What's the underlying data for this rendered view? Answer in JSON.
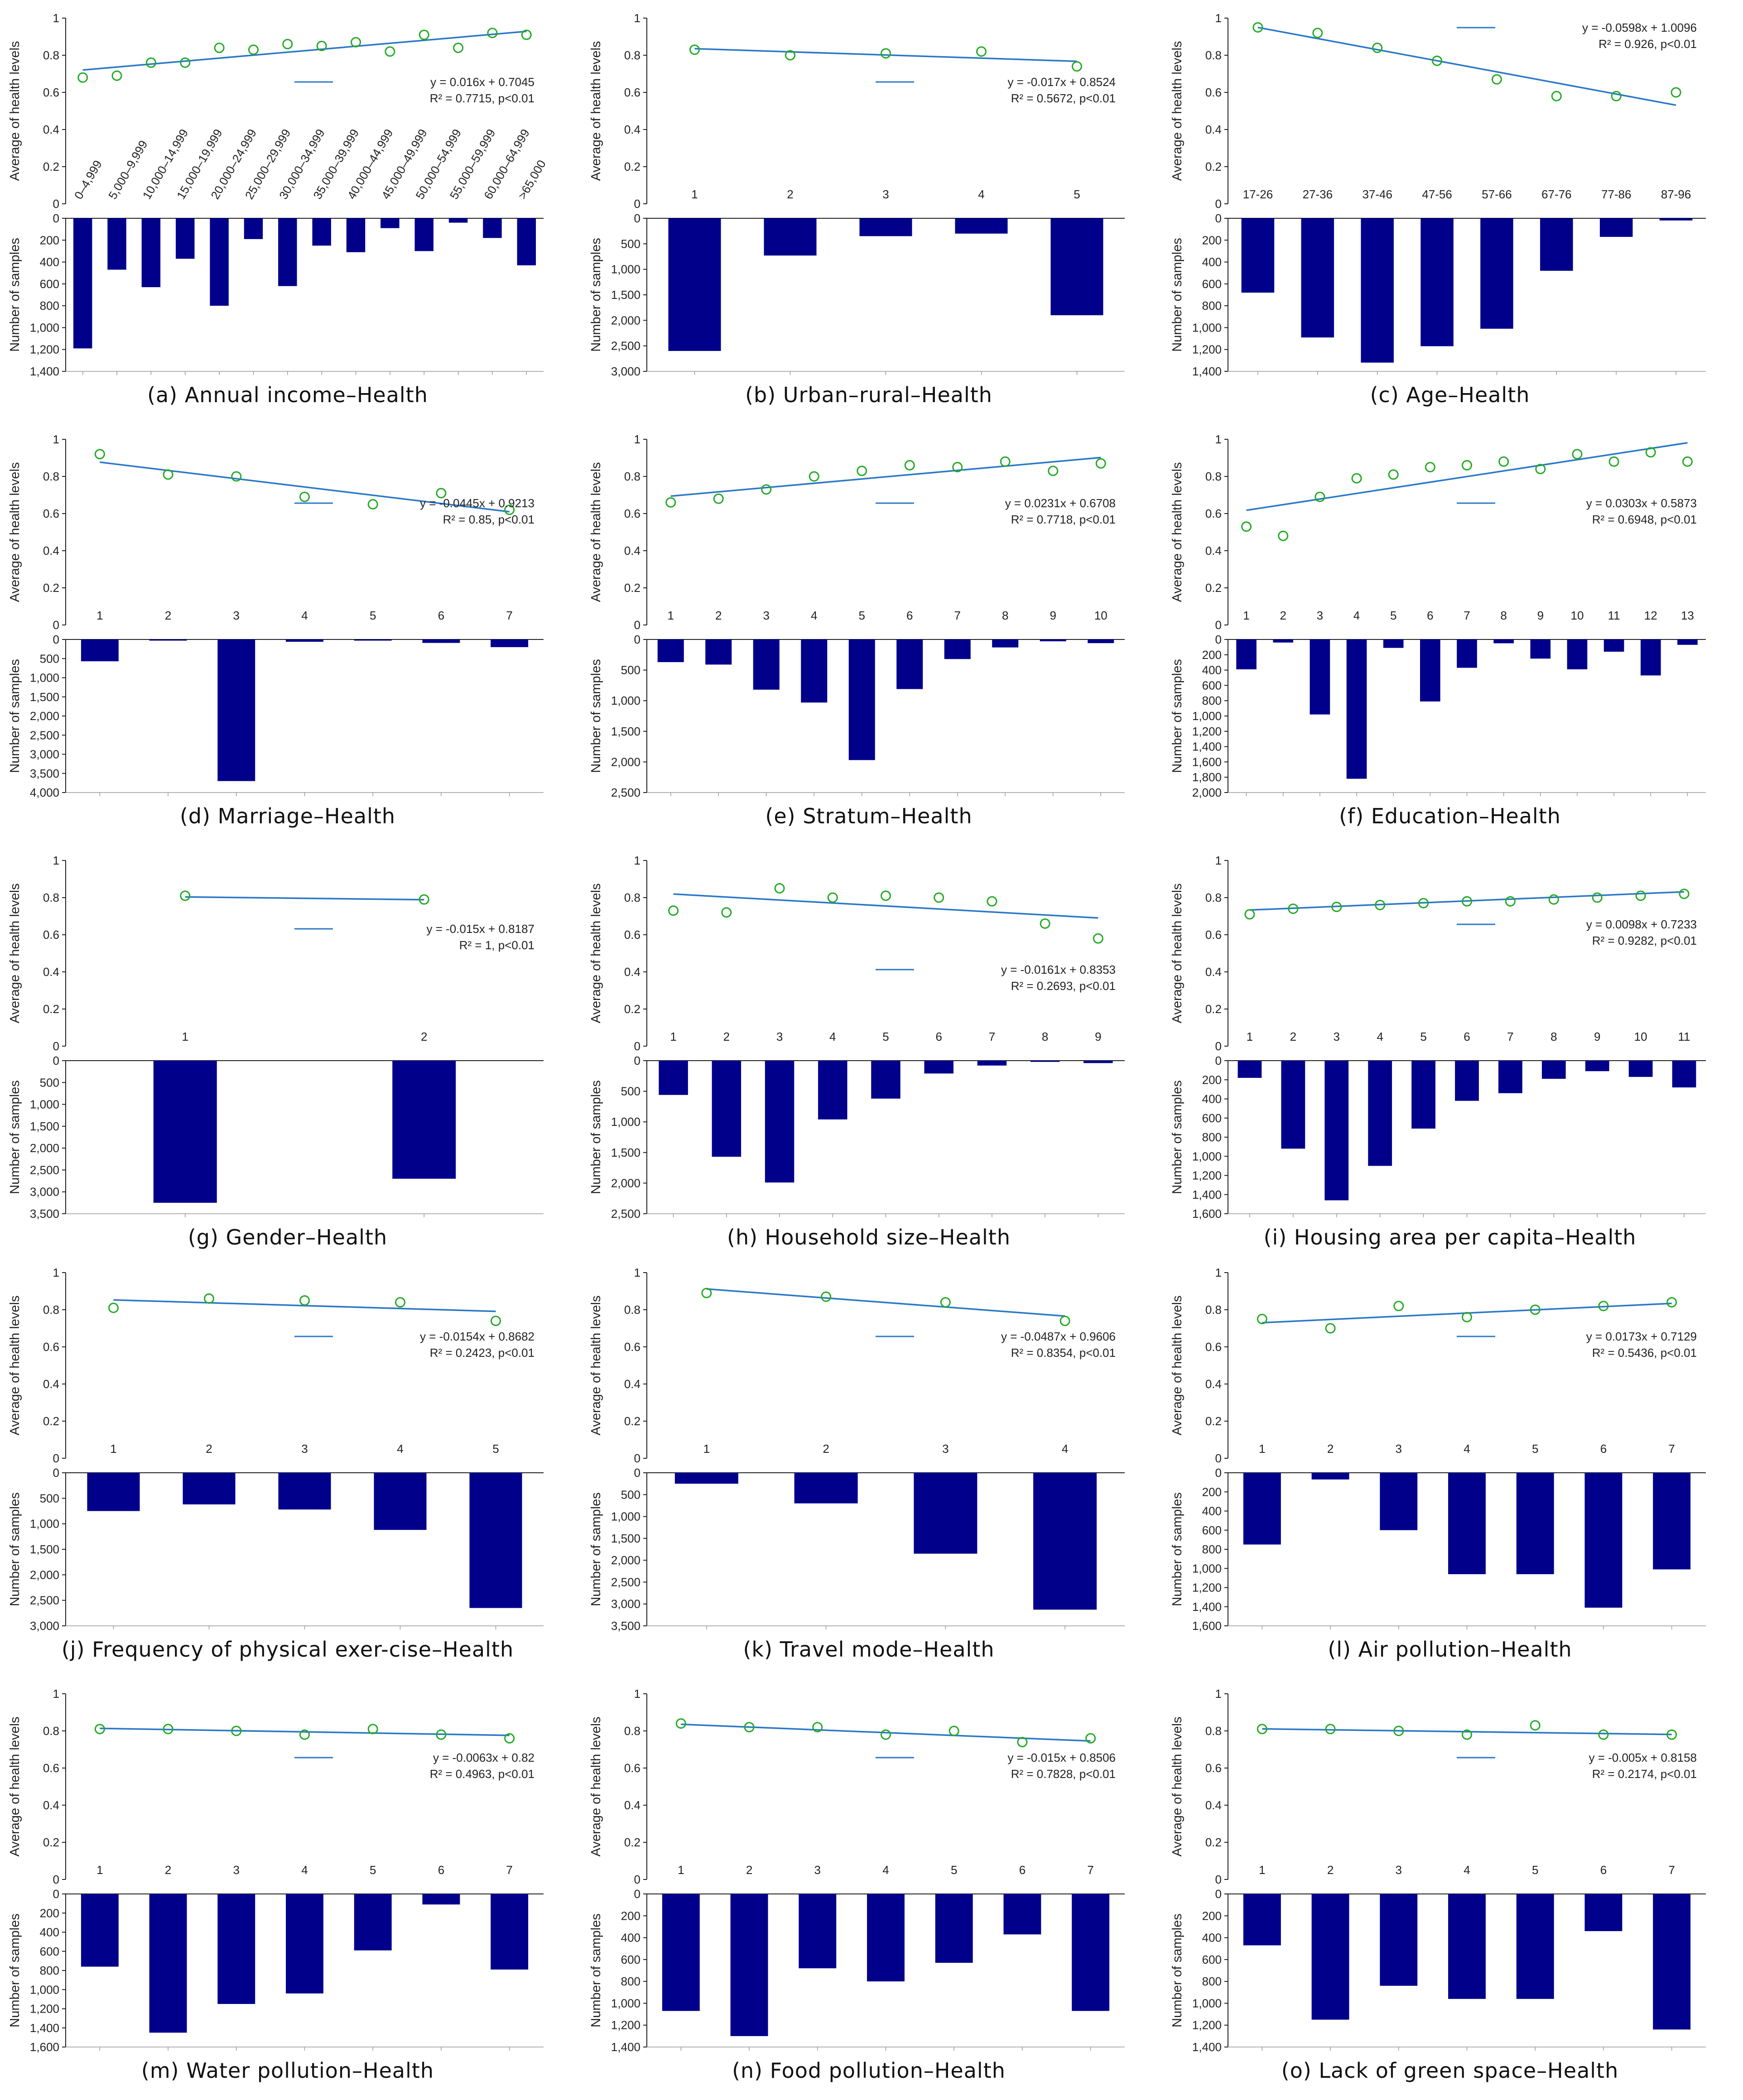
{
  "colors": {
    "bar": "#00008b",
    "trend": "#2b78c8",
    "marker": "#22aa22",
    "axis": "#222222",
    "grid": "#999999"
  },
  "labels": {
    "top_ylabel": "Average of health levels",
    "bottom_ylabel": "Number of samples"
  },
  "chart_data": [
    {
      "id": "a",
      "type": "bar+scatter",
      "caption": "(a) Annual income–Health",
      "categories": [
        "0–4,999",
        "5,000–9,999",
        "10,000–14,999",
        "15,000–19,999",
        "20,000–24,999",
        "25,000–29,999",
        "30,000–34,999",
        "35,000–39,999",
        "40,000–44,999",
        "45,000–49,999",
        "50,000–54,999",
        "55,000–59,999",
        "60,000–64,999",
        ">65,000"
      ],
      "health": [
        0.68,
        0.69,
        0.76,
        0.76,
        0.84,
        0.83,
        0.86,
        0.85,
        0.87,
        0.82,
        0.91,
        0.84,
        0.92,
        0.91
      ],
      "samples": [
        1190,
        470,
        630,
        370,
        800,
        190,
        620,
        250,
        310,
        90,
        300,
        40,
        180,
        430
      ],
      "ylim_top": [
        0,
        1
      ],
      "yticks_top": [
        0,
        0.2,
        0.4,
        0.6,
        0.8,
        1
      ],
      "ylim_bottom": [
        0,
        1400
      ],
      "yticks_bottom": [
        0,
        200,
        400,
        600,
        800,
        1000,
        1200,
        1400
      ],
      "ytick_labels_bottom": [
        "0",
        "200",
        "400",
        "600",
        "800",
        "1,000",
        "1,200",
        "1,400"
      ],
      "trend": {
        "slope": 0.016,
        "intercept": 0.7045
      },
      "equation": "y = 0.016x + 0.7045",
      "r2": "R² = 0.7715,   p<0.01",
      "rotated_categories": true
    },
    {
      "id": "b",
      "type": "bar+scatter",
      "caption": "(b) Urban–rural–Health",
      "categories": [
        "1",
        "2",
        "3",
        "4",
        "5"
      ],
      "health": [
        0.83,
        0.8,
        0.81,
        0.82,
        0.74
      ],
      "samples": [
        2600,
        730,
        350,
        300,
        1900
      ],
      "ylim_top": [
        0,
        1
      ],
      "yticks_top": [
        0,
        0.2,
        0.4,
        0.6,
        0.8,
        1
      ],
      "ylim_bottom": [
        0,
        3000
      ],
      "yticks_bottom": [
        0,
        500,
        1000,
        1500,
        2000,
        2500,
        3000
      ],
      "ytick_labels_bottom": [
        "0",
        "500",
        "1,000",
        "1,500",
        "2,000",
        "2,500",
        "3,000"
      ],
      "trend": {
        "slope": -0.017,
        "intercept": 0.8524
      },
      "equation": "y = -0.017x + 0.8524",
      "r2": "R² = 0.5672,   p<0.01"
    },
    {
      "id": "c",
      "type": "bar+scatter",
      "caption": "(c) Age–Health",
      "categories": [
        "17-26",
        "27-36",
        "37-46",
        "47-56",
        "57-66",
        "67-76",
        "77-86",
        "87-96"
      ],
      "health": [
        0.95,
        0.92,
        0.84,
        0.77,
        0.67,
        0.58,
        0.58,
        0.6
      ],
      "samples": [
        680,
        1090,
        1320,
        1170,
        1010,
        480,
        170,
        20
      ],
      "ylim_top": [
        0,
        1
      ],
      "yticks_top": [
        0,
        0.2,
        0.4,
        0.6,
        0.8,
        1
      ],
      "ylim_bottom": [
        0,
        1400
      ],
      "yticks_bottom": [
        0,
        200,
        400,
        600,
        800,
        1000,
        1200,
        1400
      ],
      "ytick_labels_bottom": [
        "0",
        "200",
        "400",
        "600",
        "800",
        "1,000",
        "1,200",
        "1,400"
      ],
      "trend": {
        "slope": -0.0598,
        "intercept": 1.0096
      },
      "equation": "y = -0.0598x + 1.0096",
      "r2": "R² = 0.926,   p<0.01"
    },
    {
      "id": "d",
      "type": "bar+scatter",
      "caption": "(d) Marriage–Health",
      "categories": [
        "1",
        "2",
        "3",
        "4",
        "5",
        "6",
        "7"
      ],
      "health": [
        0.92,
        0.81,
        0.8,
        0.69,
        0.65,
        0.71,
        0.62
      ],
      "samples": [
        570,
        30,
        3700,
        60,
        30,
        90,
        200
      ],
      "ylim_top": [
        0,
        1
      ],
      "yticks_top": [
        0,
        0.2,
        0.4,
        0.6,
        0.8,
        1
      ],
      "ylim_bottom": [
        0,
        4000
      ],
      "yticks_bottom": [
        0,
        500,
        1000,
        1500,
        2000,
        2500,
        3000,
        3500,
        4000
      ],
      "ytick_labels_bottom": [
        "0",
        "500",
        "1,000",
        "1,500",
        "2,000",
        "2,500",
        "3,000",
        "3,500",
        "4,000"
      ],
      "trend": {
        "slope": -0.0445,
        "intercept": 0.9213
      },
      "equation": "y = -0.0445x + 0.9213",
      "r2": "R² = 0.85,   p<0.01"
    },
    {
      "id": "e",
      "type": "bar+scatter",
      "caption": "(e) Stratum–Health",
      "categories": [
        "1",
        "2",
        "3",
        "4",
        "5",
        "6",
        "7",
        "8",
        "9",
        "10"
      ],
      "health": [
        0.66,
        0.68,
        0.73,
        0.8,
        0.83,
        0.86,
        0.85,
        0.88,
        0.83,
        0.87
      ],
      "samples": [
        370,
        410,
        820,
        1030,
        1970,
        810,
        320,
        130,
        30,
        60
      ],
      "ylim_top": [
        0,
        1
      ],
      "yticks_top": [
        0,
        0.2,
        0.4,
        0.6,
        0.8,
        1
      ],
      "ylim_bottom": [
        0,
        2500
      ],
      "yticks_bottom": [
        0,
        500,
        1000,
        1500,
        2000,
        2500
      ],
      "ytick_labels_bottom": [
        "0",
        "500",
        "1,000",
        "1,500",
        "2,000",
        "2,500"
      ],
      "trend": {
        "slope": 0.0231,
        "intercept": 0.6708
      },
      "equation": "y = 0.0231x + 0.6708",
      "r2": "R² = 0.7718,   p<0.01"
    },
    {
      "id": "f",
      "type": "bar+scatter",
      "caption": "(f) Education–Health",
      "categories": [
        "1",
        "2",
        "3",
        "4",
        "5",
        "6",
        "7",
        "8",
        "9",
        "10",
        "11",
        "12",
        "13"
      ],
      "health": [
        0.53,
        0.48,
        0.69,
        0.79,
        0.81,
        0.85,
        0.86,
        0.88,
        0.84,
        0.92,
        0.88,
        0.93,
        0.88
      ],
      "samples": [
        390,
        40,
        980,
        1820,
        110,
        810,
        370,
        50,
        250,
        390,
        160,
        470,
        70
      ],
      "ylim_top": [
        0,
        1
      ],
      "yticks_top": [
        0,
        0.2,
        0.4,
        0.6,
        0.8,
        1
      ],
      "ylim_bottom": [
        0,
        2000
      ],
      "yticks_bottom": [
        0,
        200,
        400,
        600,
        800,
        1000,
        1200,
        1400,
        1600,
        1800,
        2000
      ],
      "ytick_labels_bottom": [
        "0",
        "200",
        "400",
        "600",
        "800",
        "1,000",
        "1,200",
        "1,400",
        "1,600",
        "1,800",
        "2,000"
      ],
      "trend": {
        "slope": 0.0303,
        "intercept": 0.5873
      },
      "equation": "y = 0.0303x + 0.5873",
      "r2": "R² = 0.6948,   p<0.01"
    },
    {
      "id": "g",
      "type": "bar+scatter",
      "caption": "(g) Gender–Health",
      "categories": [
        "1",
        "2"
      ],
      "health": [
        0.81,
        0.79
      ],
      "samples": [
        3250,
        2700
      ],
      "ylim_top": [
        0,
        1
      ],
      "yticks_top": [
        0,
        0.2,
        0.4,
        0.6,
        0.8,
        1
      ],
      "ylim_bottom": [
        0,
        3500
      ],
      "yticks_bottom": [
        0,
        500,
        1000,
        1500,
        2000,
        2500,
        3000,
        3500
      ],
      "ytick_labels_bottom": [
        "0",
        "500",
        "1,000",
        "1,500",
        "2,000",
        "2,500",
        "3,000",
        "3,500"
      ],
      "trend": {
        "slope": -0.015,
        "intercept": 0.8187
      },
      "equation": "y = -0.015x + 0.8187",
      "r2": "R² = 1,   p<0.01"
    },
    {
      "id": "h",
      "type": "bar+scatter",
      "caption": "(h) Household size–Health",
      "categories": [
        "1",
        "2",
        "3",
        "4",
        "5",
        "6",
        "7",
        "8",
        "9"
      ],
      "health": [
        0.73,
        0.72,
        0.85,
        0.8,
        0.81,
        0.8,
        0.78,
        0.66,
        0.58
      ],
      "samples": [
        560,
        1570,
        1990,
        960,
        620,
        210,
        80,
        20,
        40
      ],
      "ylim_top": [
        0,
        1
      ],
      "yticks_top": [
        0,
        0.2,
        0.4,
        0.6,
        0.8,
        1
      ],
      "ylim_bottom": [
        0,
        2500
      ],
      "yticks_bottom": [
        0,
        500,
        1000,
        1500,
        2000,
        2500
      ],
      "ytick_labels_bottom": [
        "0",
        "500",
        "1,000",
        "1,500",
        "2,000",
        "2,500"
      ],
      "trend": {
        "slope": -0.0161,
        "intercept": 0.8353
      },
      "equation": "y = -0.0161x + 0.8353",
      "r2": "R² = 0.2693,   p<0.01"
    },
    {
      "id": "i",
      "type": "bar+scatter",
      "caption": "(i) Housing area per capita–Health",
      "categories": [
        "1",
        "2",
        "3",
        "4",
        "5",
        "6",
        "7",
        "8",
        "9",
        "10",
        "11"
      ],
      "health": [
        0.71,
        0.74,
        0.75,
        0.76,
        0.77,
        0.78,
        0.78,
        0.79,
        0.8,
        0.81,
        0.82
      ],
      "samples": [
        180,
        920,
        1460,
        1100,
        710,
        420,
        340,
        190,
        110,
        170,
        280
      ],
      "ylim_top": [
        0,
        1
      ],
      "yticks_top": [
        0,
        0.2,
        0.4,
        0.6,
        0.8,
        1
      ],
      "ylim_bottom": [
        0,
        1600
      ],
      "yticks_bottom": [
        0,
        200,
        400,
        600,
        800,
        1000,
        1200,
        1400,
        1600
      ],
      "ytick_labels_bottom": [
        "0",
        "200",
        "400",
        "600",
        "800",
        "1,000",
        "1,200",
        "1,400",
        "1,600"
      ],
      "trend": {
        "slope": 0.0098,
        "intercept": 0.7233
      },
      "equation": "y = 0.0098x + 0.7233",
      "r2": "R² = 0.9282,   p<0.01"
    },
    {
      "id": "j",
      "type": "bar+scatter",
      "caption": "(j) Frequency of physical exer-cise–Health",
      "categories": [
        "1",
        "2",
        "3",
        "4",
        "5"
      ],
      "health": [
        0.81,
        0.86,
        0.85,
        0.84,
        0.74
      ],
      "samples": [
        750,
        620,
        720,
        1120,
        2650
      ],
      "ylim_top": [
        0,
        1
      ],
      "yticks_top": [
        0,
        0.2,
        0.4,
        0.6,
        0.8,
        1
      ],
      "ylim_bottom": [
        0,
        3000
      ],
      "yticks_bottom": [
        0,
        500,
        1000,
        1500,
        2000,
        2500,
        3000
      ],
      "ytick_labels_bottom": [
        "0",
        "500",
        "1,000",
        "1,500",
        "2,000",
        "2,500",
        "3,000"
      ],
      "trend": {
        "slope": -0.0154,
        "intercept": 0.8682
      },
      "equation": "y = -0.0154x + 0.8682",
      "r2": "R² = 0.2423,   p<0.01"
    },
    {
      "id": "k",
      "type": "bar+scatter",
      "caption": "(k) Travel mode–Health",
      "categories": [
        "1",
        "2",
        "3",
        "4"
      ],
      "health": [
        0.89,
        0.87,
        0.84,
        0.74
      ],
      "samples": [
        250,
        700,
        1850,
        3130
      ],
      "ylim_top": [
        0,
        1
      ],
      "yticks_top": [
        0,
        0.2,
        0.4,
        0.6,
        0.8,
        1
      ],
      "ylim_bottom": [
        0,
        3500
      ],
      "yticks_bottom": [
        0,
        500,
        1000,
        1500,
        2000,
        2500,
        3000,
        3500
      ],
      "ytick_labels_bottom": [
        "0",
        "500",
        "1,000",
        "1,500",
        "2,000",
        "2,500",
        "3,000",
        "3,500"
      ],
      "trend": {
        "slope": -0.0487,
        "intercept": 0.9606
      },
      "equation": "y = -0.0487x + 0.9606",
      "r2": "R² = 0.8354,   p<0.01"
    },
    {
      "id": "l",
      "type": "bar+scatter",
      "caption": "(l) Air pollution–Health",
      "categories": [
        "1",
        "2",
        "3",
        "4",
        "5",
        "6",
        "7"
      ],
      "health": [
        0.75,
        0.7,
        0.82,
        0.76,
        0.8,
        0.82,
        0.84
      ],
      "samples": [
        750,
        70,
        600,
        1060,
        1060,
        1410,
        1010
      ],
      "ylim_top": [
        0,
        1
      ],
      "yticks_top": [
        0,
        0.2,
        0.4,
        0.6,
        0.8,
        1
      ],
      "ylim_bottom": [
        0,
        1600
      ],
      "yticks_bottom": [
        0,
        200,
        400,
        600,
        800,
        1000,
        1200,
        1400,
        1600
      ],
      "ytick_labels_bottom": [
        "0",
        "200",
        "400",
        "600",
        "800",
        "1,000",
        "1,200",
        "1,400",
        "1,600"
      ],
      "trend": {
        "slope": 0.0173,
        "intercept": 0.7129
      },
      "equation": "y = 0.0173x + 0.7129",
      "r2": "R² = 0.5436,   p<0.01"
    },
    {
      "id": "m",
      "type": "bar+scatter",
      "caption": "(m) Water pollution–Health",
      "categories": [
        "1",
        "2",
        "3",
        "4",
        "5",
        "6",
        "7"
      ],
      "health": [
        0.81,
        0.81,
        0.8,
        0.78,
        0.81,
        0.78,
        0.76
      ],
      "samples": [
        760,
        1450,
        1150,
        1040,
        590,
        110,
        790
      ],
      "ylim_top": [
        0,
        1
      ],
      "yticks_top": [
        0,
        0.2,
        0.4,
        0.6,
        0.8,
        1
      ],
      "ylim_bottom": [
        0,
        1600
      ],
      "yticks_bottom": [
        0,
        200,
        400,
        600,
        800,
        1000,
        1200,
        1400,
        1600
      ],
      "ytick_labels_bottom": [
        "0",
        "200",
        "400",
        "600",
        "800",
        "1,000",
        "1,200",
        "1,400",
        "1,600"
      ],
      "trend": {
        "slope": -0.0063,
        "intercept": 0.82
      },
      "equation": "y = -0.0063x + 0.82",
      "r2": "R² = 0.4963,   p<0.01"
    },
    {
      "id": "n",
      "type": "bar+scatter",
      "caption": "(n) Food pollution–Health",
      "categories": [
        "1",
        "2",
        "3",
        "4",
        "5",
        "6",
        "7"
      ],
      "health": [
        0.84,
        0.82,
        0.82,
        0.78,
        0.8,
        0.74,
        0.76
      ],
      "samples": [
        1070,
        1300,
        680,
        800,
        630,
        370,
        1070
      ],
      "ylim_top": [
        0,
        1
      ],
      "yticks_top": [
        0,
        0.2,
        0.4,
        0.6,
        0.8,
        1
      ],
      "ylim_bottom": [
        0,
        1400
      ],
      "yticks_bottom": [
        0,
        200,
        400,
        600,
        800,
        1000,
        1200,
        1400
      ],
      "ytick_labels_bottom": [
        "0",
        "200",
        "400",
        "600",
        "800",
        "1,000",
        "1,200",
        "1,400"
      ],
      "trend": {
        "slope": -0.015,
        "intercept": 0.8506
      },
      "equation": "y = -0.015x + 0.8506",
      "r2": "R² = 0.7828,   p<0.01"
    },
    {
      "id": "o",
      "type": "bar+scatter",
      "caption": "(o) Lack of green space–Health",
      "categories": [
        "1",
        "2",
        "3",
        "4",
        "5",
        "6",
        "7"
      ],
      "health": [
        0.81,
        0.81,
        0.8,
        0.78,
        0.83,
        0.78,
        0.78
      ],
      "samples": [
        470,
        1150,
        840,
        960,
        960,
        340,
        1240
      ],
      "ylim_top": [
        0,
        1
      ],
      "yticks_top": [
        0,
        0.2,
        0.4,
        0.6,
        0.8,
        1
      ],
      "ylim_bottom": [
        0,
        1400
      ],
      "yticks_bottom": [
        0,
        200,
        400,
        600,
        800,
        1000,
        1200,
        1400
      ],
      "ytick_labels_bottom": [
        "0",
        "200",
        "400",
        "600",
        "800",
        "1,000",
        "1,200",
        "1,400"
      ],
      "trend": {
        "slope": -0.005,
        "intercept": 0.8158
      },
      "equation": "y = -0.005x + 0.8158",
      "r2": "R² = 0.2174,   p<0.01"
    }
  ]
}
